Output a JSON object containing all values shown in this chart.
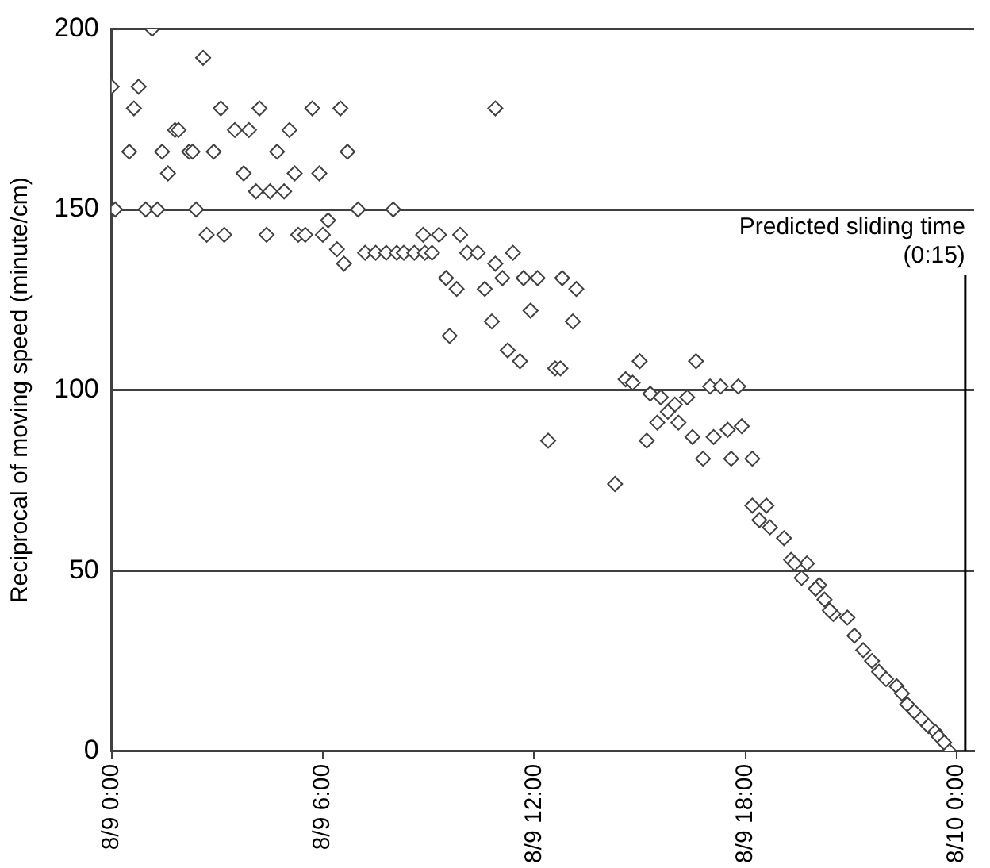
{
  "chart_data": {
    "type": "scatter",
    "ylabel": "Reciprocal of moving speed (minute/cm)",
    "xlim": [
      "--08-09T00:00",
      "--08-10T00:30"
    ],
    "xticks": [
      {
        "value": "--08-09T00:00",
        "label": "8/9 0:00"
      },
      {
        "value": "--08-09T06:00",
        "label": "8/9 6:00"
      },
      {
        "value": "--08-09T12:00",
        "label": "8/9 12:00"
      },
      {
        "value": "--08-09T18:00",
        "label": "8/9 18:00"
      },
      {
        "value": "--08-10T00:00",
        "label": "8/10 0:00"
      }
    ],
    "ylim": [
      0,
      200
    ],
    "yticks": [
      0,
      50,
      100,
      150,
      200
    ],
    "grid": "y",
    "marker": "diamond",
    "legend": false,
    "ref_lines": [
      {
        "axis": "x",
        "value": "--08-10T00:15",
        "label": "Predicted sliding time\n(0:15)",
        "color": "#000000"
      }
    ],
    "series": [
      {
        "color": "#404040",
        "x": [
          "--08-09T00:00",
          "--08-09T00:06",
          "--08-09T01:09",
          "--08-09T00:46",
          "--08-09T00:38",
          "--08-09T00:30",
          "--08-09T00:58",
          "--08-09T01:18",
          "--08-09T01:26",
          "--08-09T01:36",
          "--08-09T01:48",
          "--08-09T01:54",
          "--08-09T02:12",
          "--08-09T02:18",
          "--08-09T02:24",
          "--08-09T02:36",
          "--08-09T02:54",
          "--08-09T02:42",
          "--08-09T03:12",
          "--08-09T03:06",
          "--08-09T03:30",
          "--08-09T03:54",
          "--08-09T03:45",
          "--08-09T04:12",
          "--08-09T04:06",
          "--08-09T04:30",
          "--08-09T04:24",
          "--08-09T04:42",
          "--08-09T04:54",
          "--08-09T05:03",
          "--08-09T05:12",
          "--08-09T05:18",
          "--08-09T05:30",
          "--08-09T05:42",
          "--08-09T05:54",
          "--08-09T06:00",
          "--08-09T06:09",
          "--08-09T06:24",
          "--08-09T06:36",
          "--08-09T06:30",
          "--08-09T06:42",
          "--08-09T07:00",
          "--08-09T08:00",
          "--08-09T07:12",
          "--08-09T07:30",
          "--08-09T07:48",
          "--08-09T08:06",
          "--08-09T08:18",
          "--08-09T08:36",
          "--08-09T08:54",
          "--08-09T08:51",
          "--08-09T09:06",
          "--08-09T09:18",
          "--08-09T09:54",
          "--08-09T09:30",
          "--08-09T09:48",
          "--08-09T10:06",
          "--08-09T10:24",
          "--08-09T11:24",
          "--08-09T10:36",
          "--08-09T10:54",
          "--08-09T11:06",
          "--08-09T10:48",
          "--08-09T09:36",
          "--08-09T11:42",
          "--08-09T12:06",
          "--08-09T11:54",
          "--08-09T12:48",
          "--08-09T13:12",
          "--08-09T13:06",
          "--08-09T11:15",
          "--08-09T11:36",
          "--08-09T12:36",
          "--08-09T12:45",
          "--08-09T12:24",
          "--08-09T10:54",
          "--08-09T14:36",
          "--08-09T15:00",
          "--08-09T14:48",
          "--08-09T14:18",
          "--08-09T15:12",
          "--08-09T15:18",
          "--08-09T15:36",
          "--08-09T16:00",
          "--08-09T16:21",
          "--08-09T15:48",
          "--08-09T15:30",
          "--08-09T16:06",
          "--08-09T16:30",
          "--08-09T16:36",
          "--08-09T17:00",
          "--08-09T17:18",
          "--08-09T17:48",
          "--08-09T17:30",
          "--08-09T17:06",
          "--08-09T17:54",
          "--08-09T16:48",
          "--08-09T17:36",
          "--08-09T18:12",
          "--08-09T18:12",
          "--08-09T18:36",
          "--08-09T18:24",
          "--08-09T18:42",
          "--08-09T19:06",
          "--08-09T19:18",
          "--08-09T19:45",
          "--08-09T19:36",
          "--08-09T20:06",
          "--08-09T20:15",
          "--08-09T20:30",
          "--08-09T20:54",
          "--08-09T19:24",
          "--08-09T20:00",
          "--08-09T20:24",
          "--08-09T21:21",
          "--08-09T21:06",
          "--08-09T21:36",
          "--08-09T21:48",
          "--08-09T22:00",
          "--08-09T22:18",
          "--08-09T22:27",
          "--08-09T22:36",
          "--08-09T22:48",
          "--08-09T23:00",
          "--08-09T23:12",
          "--08-09T23:24",
          "--08-09T23:30",
          "--08-09T23:39",
          "--08-09T23:48"
        ],
        "values": [
          184,
          150,
          200,
          184,
          178,
          166,
          150,
          150,
          166,
          160,
          172,
          172,
          166,
          166,
          150,
          192,
          166,
          143,
          143,
          178,
          172,
          172,
          160,
          178,
          155,
          155,
          143,
          166,
          155,
          172,
          160,
          143,
          143,
          178,
          160,
          143,
          147,
          139,
          135,
          178,
          166,
          150,
          150,
          138,
          138,
          138,
          138,
          138,
          138,
          138,
          143,
          138,
          143,
          143,
          131,
          128,
          138,
          138,
          138,
          128,
          135,
          131,
          119,
          115,
          131,
          131,
          122,
          131,
          128,
          119,
          111,
          108,
          106,
          106,
          86,
          178,
          103,
          108,
          102,
          74,
          86,
          99,
          98,
          96,
          98,
          94,
          91,
          91,
          87,
          108,
          101,
          101,
          101,
          89,
          87,
          90,
          81,
          81,
          81,
          68,
          68,
          64,
          62,
          59,
          53,
          52,
          48,
          46,
          42,
          38,
          37,
          52,
          45,
          39,
          28,
          32,
          25,
          22,
          20,
          18,
          16,
          13,
          11,
          9,
          7,
          5.4,
          4,
          2.4,
          0
        ]
      }
    ]
  }
}
